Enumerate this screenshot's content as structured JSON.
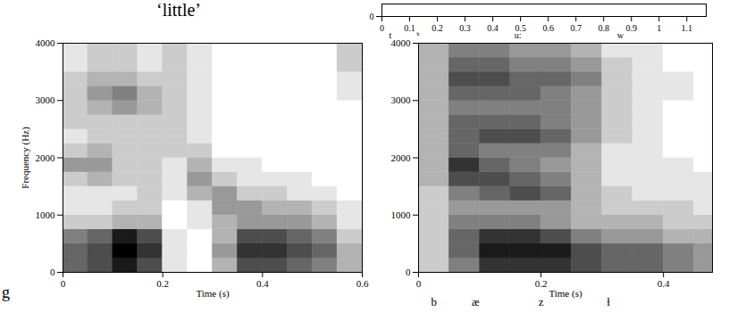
{
  "chart_data": [
    {
      "type": "spectrogram",
      "title": "‘little’",
      "annotations": [
        "g"
      ],
      "x_label": "Time (s)",
      "y_label": "Frequency (Hz)",
      "xlim": [
        0,
        0.6
      ],
      "xticks": [
        0,
        0.2,
        0.4,
        0.6
      ],
      "ylim": [
        0,
        4000
      ],
      "yticks": [
        0,
        1000,
        2000,
        3000,
        4000
      ],
      "zlim": [
        0,
        1
      ],
      "time_bins": [
        0,
        0.05,
        0.1,
        0.15,
        0.2,
        0.25,
        0.3,
        0.35,
        0.4,
        0.45,
        0.5,
        0.55,
        0.6
      ],
      "freq_bins": [
        0,
        250,
        500,
        750,
        1000,
        1250,
        1500,
        1750,
        2000,
        2250,
        2500,
        2750,
        3000,
        3250,
        3500,
        3750,
        4000
      ],
      "intensity": [
        [
          0.6,
          0.7,
          0.9,
          0.7,
          0.1,
          0.0,
          0.3,
          0.7,
          0.7,
          0.6,
          0.5,
          0.3
        ],
        [
          0.6,
          0.7,
          1.0,
          0.8,
          0.1,
          0.0,
          0.4,
          0.8,
          0.8,
          0.7,
          0.6,
          0.3
        ],
        [
          0.5,
          0.6,
          0.9,
          0.7,
          0.1,
          0.0,
          0.3,
          0.7,
          0.7,
          0.6,
          0.5,
          0.2
        ],
        [
          0.2,
          0.2,
          0.3,
          0.3,
          0.0,
          0.1,
          0.3,
          0.4,
          0.4,
          0.4,
          0.3,
          0.1
        ],
        [
          0.1,
          0.1,
          0.2,
          0.2,
          0.0,
          0.1,
          0.4,
          0.4,
          0.3,
          0.3,
          0.2,
          0.1
        ],
        [
          0.1,
          0.1,
          0.1,
          0.2,
          0.1,
          0.3,
          0.4,
          0.2,
          0.2,
          0.1,
          0.1,
          0.0
        ],
        [
          0.2,
          0.3,
          0.2,
          0.2,
          0.1,
          0.4,
          0.2,
          0.1,
          0.1,
          0.1,
          0.0,
          0.0
        ],
        [
          0.4,
          0.4,
          0.2,
          0.2,
          0.1,
          0.3,
          0.1,
          0.1,
          0.0,
          0.0,
          0.0,
          0.0
        ],
        [
          0.2,
          0.3,
          0.2,
          0.2,
          0.2,
          0.2,
          0.0,
          0.0,
          0.0,
          0.0,
          0.0,
          0.0
        ],
        [
          0.1,
          0.2,
          0.2,
          0.2,
          0.2,
          0.1,
          0.0,
          0.0,
          0.0,
          0.0,
          0.0,
          0.0
        ],
        [
          0.2,
          0.2,
          0.2,
          0.2,
          0.2,
          0.1,
          0.0,
          0.0,
          0.0,
          0.0,
          0.0,
          0.0
        ],
        [
          0.2,
          0.3,
          0.4,
          0.3,
          0.2,
          0.1,
          0.0,
          0.0,
          0.0,
          0.0,
          0.0,
          0.0
        ],
        [
          0.2,
          0.4,
          0.5,
          0.3,
          0.2,
          0.1,
          0.0,
          0.0,
          0.0,
          0.0,
          0.0,
          0.1
        ],
        [
          0.2,
          0.3,
          0.3,
          0.2,
          0.2,
          0.1,
          0.0,
          0.0,
          0.0,
          0.0,
          0.0,
          0.1
        ],
        [
          0.1,
          0.2,
          0.2,
          0.1,
          0.2,
          0.1,
          0.0,
          0.0,
          0.0,
          0.0,
          0.0,
          0.2
        ],
        [
          0.1,
          0.2,
          0.2,
          0.1,
          0.2,
          0.1,
          0.0,
          0.0,
          0.0,
          0.0,
          0.0,
          0.2
        ]
      ]
    },
    {
      "type": "spectrogram",
      "x_label": "Time (s)",
      "xlim": [
        0,
        0.48
      ],
      "xticks": [
        0,
        0.2,
        0.4
      ],
      "ylim": [
        0,
        4000
      ],
      "yticks": [
        0,
        1000,
        2000,
        3000,
        4000
      ],
      "zlim": [
        0,
        1
      ],
      "segments": [
        {
          "label": "b",
          "time": 0.025
        },
        {
          "label": "æ",
          "time": 0.093
        },
        {
          "label": "z",
          "time": 0.2
        },
        {
          "label": "ɫ",
          "time": 0.31
        }
      ],
      "time_bins": [
        0,
        0.05,
        0.1,
        0.15,
        0.2,
        0.25,
        0.3,
        0.35,
        0.4,
        0.45,
        0.5
      ],
      "freq_bins": [
        0,
        250,
        500,
        750,
        1000,
        1250,
        1500,
        1750,
        2000,
        2250,
        2500,
        2750,
        3000,
        3250,
        3500,
        3750,
        4000
      ],
      "intensity": [
        [
          0.2,
          0.5,
          0.8,
          0.8,
          0.8,
          0.7,
          0.6,
          0.6,
          0.5,
          0.4
        ],
        [
          0.2,
          0.6,
          0.9,
          0.9,
          0.9,
          0.7,
          0.6,
          0.6,
          0.5,
          0.4
        ],
        [
          0.2,
          0.6,
          0.8,
          0.8,
          0.7,
          0.5,
          0.4,
          0.4,
          0.3,
          0.3
        ],
        [
          0.2,
          0.5,
          0.5,
          0.5,
          0.4,
          0.3,
          0.3,
          0.3,
          0.2,
          0.2
        ],
        [
          0.2,
          0.4,
          0.4,
          0.4,
          0.4,
          0.3,
          0.2,
          0.2,
          0.2,
          0.1
        ],
        [
          0.2,
          0.5,
          0.6,
          0.7,
          0.6,
          0.3,
          0.2,
          0.1,
          0.1,
          0.1
        ],
        [
          0.3,
          0.7,
          0.7,
          0.6,
          0.5,
          0.3,
          0.1,
          0.1,
          0.1,
          0.1
        ],
        [
          0.3,
          0.8,
          0.6,
          0.5,
          0.4,
          0.3,
          0.1,
          0.1,
          0.1,
          0.0
        ],
        [
          0.3,
          0.6,
          0.5,
          0.5,
          0.5,
          0.3,
          0.1,
          0.1,
          0.0,
          0.0
        ],
        [
          0.3,
          0.6,
          0.7,
          0.7,
          0.6,
          0.4,
          0.2,
          0.1,
          0.0,
          0.0
        ],
        [
          0.3,
          0.6,
          0.6,
          0.6,
          0.5,
          0.4,
          0.2,
          0.1,
          0.0,
          0.0
        ],
        [
          0.3,
          0.5,
          0.5,
          0.5,
          0.5,
          0.4,
          0.2,
          0.1,
          0.0,
          0.0
        ],
        [
          0.3,
          0.6,
          0.6,
          0.6,
          0.5,
          0.4,
          0.2,
          0.1,
          0.1,
          0.0
        ],
        [
          0.3,
          0.7,
          0.7,
          0.6,
          0.6,
          0.5,
          0.2,
          0.1,
          0.1,
          0.0
        ],
        [
          0.3,
          0.6,
          0.6,
          0.5,
          0.5,
          0.4,
          0.2,
          0.1,
          0.0,
          0.0
        ],
        [
          0.3,
          0.5,
          0.5,
          0.4,
          0.4,
          0.3,
          0.1,
          0.1,
          0.0,
          0.0
        ]
      ]
    },
    {
      "type": "spectrogram",
      "xlim": [
        0,
        1.17
      ],
      "xticks": [
        0,
        0.1,
        0.2,
        0.3,
        0.4,
        0.5,
        0.6,
        0.7,
        0.8,
        0.9,
        1,
        1.1
      ],
      "ylim": [
        0,
        150
      ],
      "yticks": [
        0
      ],
      "segments": [
        {
          "label": "t",
          "time": 0.03
        },
        {
          "label": "ʰ",
          "time": 0.13
        },
        {
          "label": "u:",
          "time": 0.49
        },
        {
          "label": "w",
          "time": 0.86
        }
      ]
    }
  ]
}
